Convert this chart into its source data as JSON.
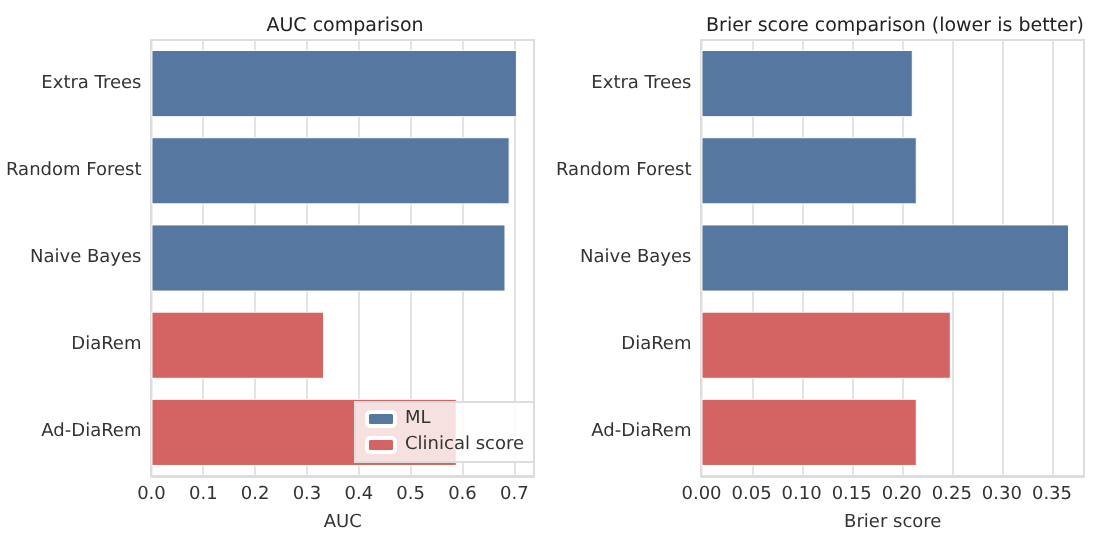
{
  "chart_data": [
    {
      "type": "bar",
      "orientation": "horizontal",
      "stacked": true,
      "title": "AUC comparison",
      "xlabel": "AUC",
      "categories": [
        "Extra Trees",
        "Random Forest",
        "Naive Bayes",
        "DiaRem",
        "Ad-DiaRem"
      ],
      "series": [
        {
          "name": "ML",
          "color": "#5577a0",
          "values": [
            0.705,
            0.691,
            0.683,
            null,
            null
          ]
        },
        {
          "name": "Clinical score",
          "color": "#d46464",
          "values": [
            null,
            null,
            null,
            0.333,
            0.589
          ]
        }
      ],
      "xlim": [
        0,
        0.738
      ],
      "xticks": [
        {
          "value": 0,
          "label": "0.0"
        },
        0.1,
        0.2,
        0.3,
        0.4,
        0.5,
        0.6,
        0.7
      ],
      "grid": "x",
      "legend": "bottom right"
    },
    {
      "type": "bar",
      "orientation": "horizontal",
      "title": "Brier score comparison (lower is better)",
      "xlabel": "Brier score",
      "categories": [
        "Extra Trees",
        "Random Forest",
        "Naive Bayes",
        "DiaRem",
        "Ad-DiaRem"
      ],
      "values": [
        0.211,
        0.215,
        0.367,
        0.249,
        0.215
      ],
      "colors": [
        "#5577a0",
        "#5577a0",
        "#5577a0",
        "#d46464",
        "#d46464"
      ],
      "xlim": [
        0,
        0.382
      ],
      "xticks": [
        {
          "value": 0,
          "label": "0.00"
        },
        {
          "value": 0.05,
          "label": "0.05"
        },
        {
          "value": 0.1,
          "label": "0.10"
        },
        {
          "value": 0.15,
          "label": "0.15"
        },
        {
          "value": 0.2,
          "label": "0.20"
        },
        {
          "value": 0.25,
          "label": "0.25"
        },
        {
          "value": 0.3,
          "label": "0.30"
        },
        {
          "value": 0.35,
          "label": "0.35"
        }
      ],
      "grid": "x"
    }
  ]
}
